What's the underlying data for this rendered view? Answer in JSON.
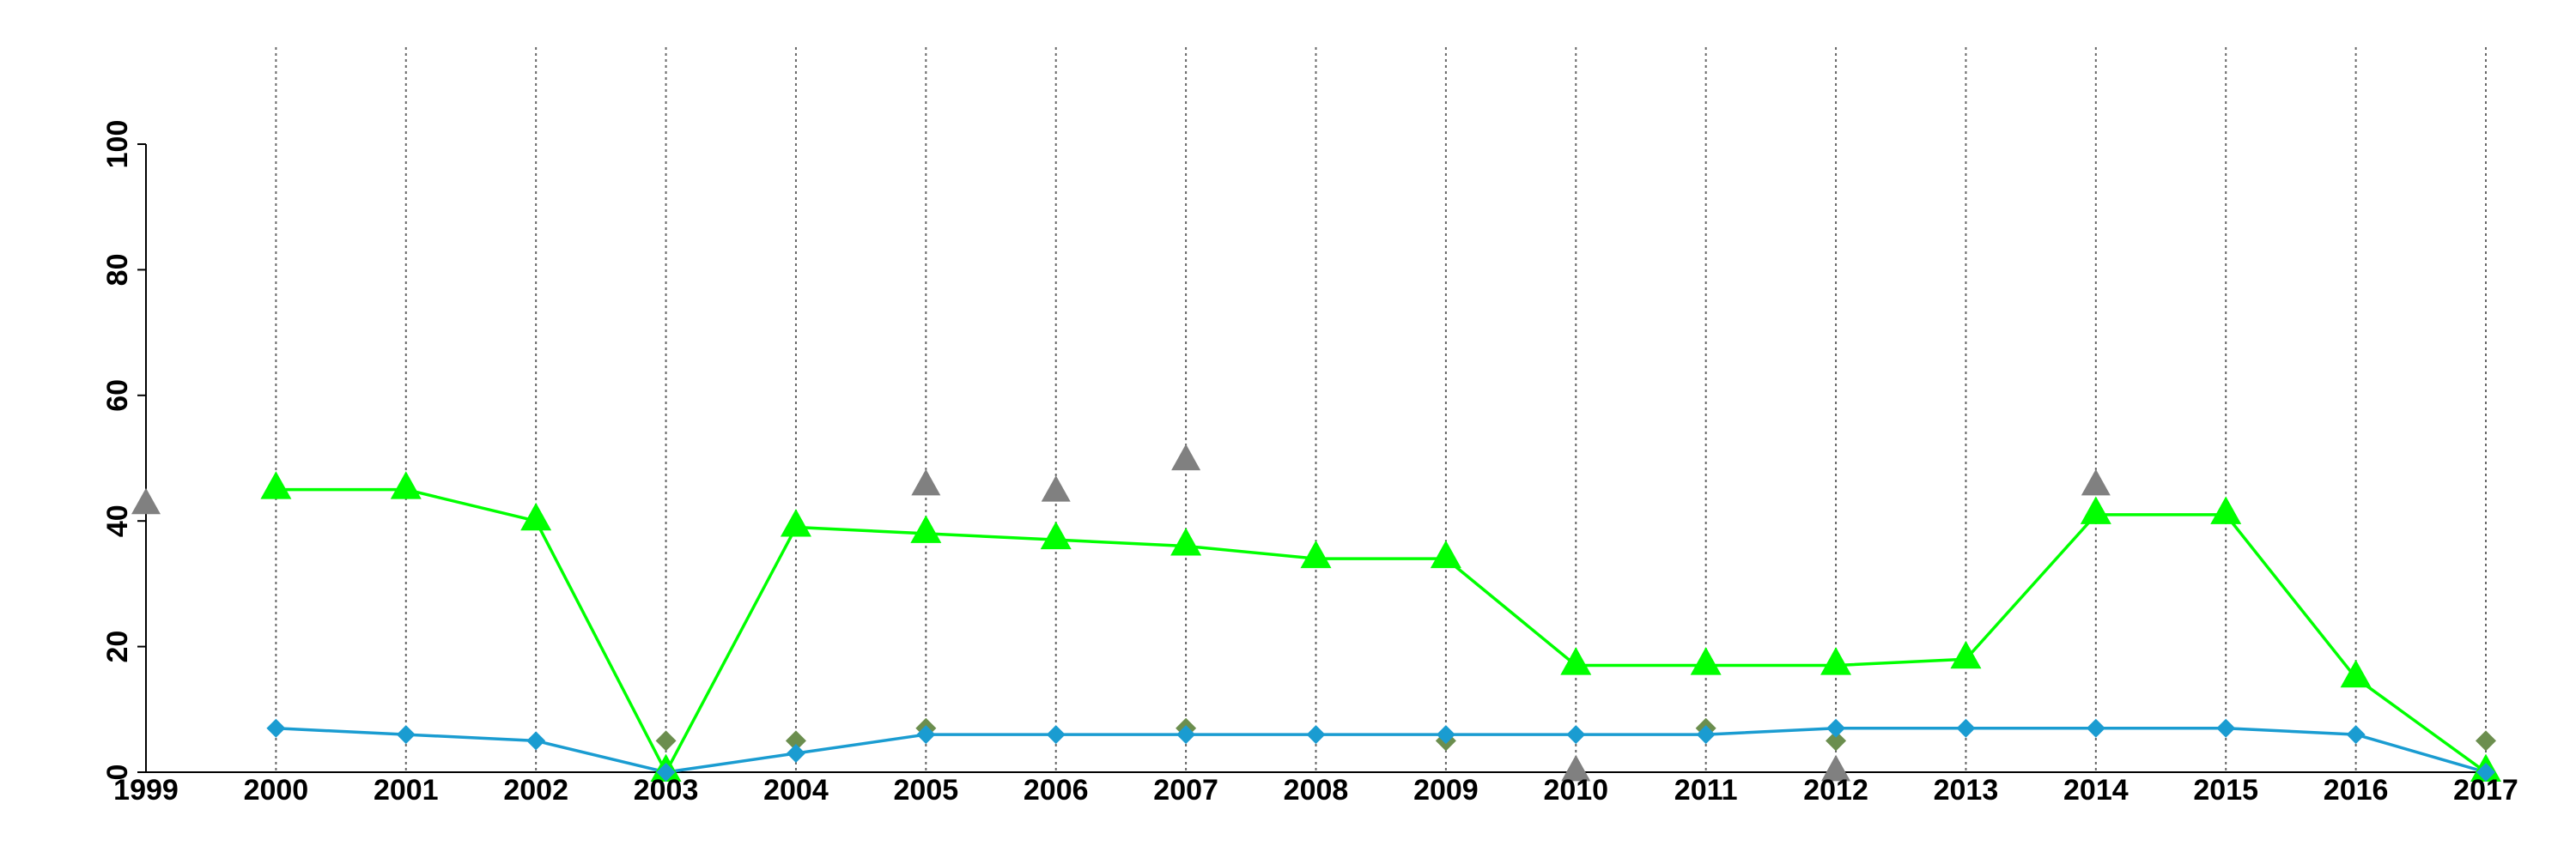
{
  "chart_data": {
    "type": "line",
    "xlabel": "",
    "ylabel": "",
    "ylim": [
      0,
      100
    ],
    "yticks": [
      0,
      20,
      40,
      60,
      80,
      100
    ],
    "x": [
      1999,
      2000,
      2001,
      2002,
      2003,
      2004,
      2005,
      2006,
      2007,
      2008,
      2009,
      2010,
      2011,
      2012,
      2013,
      2014,
      2015,
      2016,
      2017
    ],
    "vertical_dotted_lines_at": [
      2000,
      2001,
      2002,
      2003,
      2004,
      2005,
      2006,
      2007,
      2008,
      2009,
      2010,
      2011,
      2012,
      2013,
      2014,
      2015,
      2016,
      2017
    ],
    "grid": "vertical dotted lines only",
    "legend": "none",
    "series": [
      {
        "style": "line",
        "marker": "triangle",
        "color": "#00ff00",
        "points": [
          [
            2000,
            45
          ],
          [
            2001,
            45
          ],
          [
            2002,
            40
          ],
          [
            2003,
            0
          ],
          [
            2004,
            39
          ],
          [
            2005,
            38
          ],
          [
            2006,
            37
          ],
          [
            2007,
            36
          ],
          [
            2008,
            34
          ],
          [
            2009,
            34
          ],
          [
            2010,
            17
          ],
          [
            2011,
            17
          ],
          [
            2012,
            17
          ],
          [
            2013,
            18
          ],
          [
            2014,
            41
          ],
          [
            2015,
            41
          ],
          [
            2016,
            15
          ],
          [
            2017,
            0
          ]
        ]
      },
      {
        "style": "line",
        "marker": "diamond",
        "color": "#1a9cd1",
        "points": [
          [
            2000,
            7
          ],
          [
            2001,
            6
          ],
          [
            2002,
            5
          ],
          [
            2003,
            0
          ],
          [
            2004,
            3
          ],
          [
            2005,
            6
          ],
          [
            2006,
            6
          ],
          [
            2007,
            6
          ],
          [
            2008,
            6
          ],
          [
            2009,
            6
          ],
          [
            2010,
            6
          ],
          [
            2011,
            6
          ],
          [
            2012,
            7
          ],
          [
            2013,
            7
          ],
          [
            2014,
            7
          ],
          [
            2015,
            7
          ],
          [
            2016,
            6
          ],
          [
            2017,
            0
          ]
        ]
      },
      {
        "style": "points",
        "marker": "triangle",
        "color": "#808080",
        "points": [
          [
            1999,
            42.5
          ],
          [
            2005,
            45.5
          ],
          [
            2006,
            44.5
          ],
          [
            2007,
            49.5
          ],
          [
            2010,
            0
          ],
          [
            2012,
            0
          ],
          [
            2014,
            45.5
          ]
        ]
      },
      {
        "style": "points",
        "marker": "diamond",
        "color": "#6b8e4e",
        "points": [
          [
            2003,
            5
          ],
          [
            2004,
            5
          ],
          [
            2005,
            7
          ],
          [
            2007,
            7
          ],
          [
            2009,
            5
          ],
          [
            2011,
            7
          ],
          [
            2012,
            5
          ],
          [
            2017,
            5
          ]
        ]
      }
    ]
  }
}
